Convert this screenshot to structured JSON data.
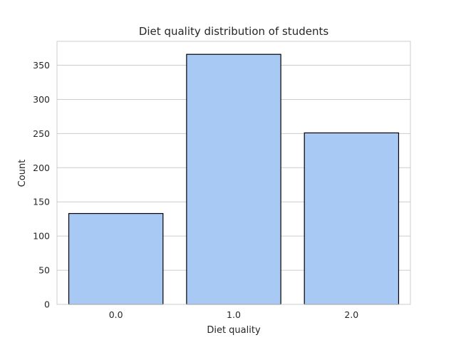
{
  "chart_data": {
    "type": "bar",
    "title": "Diet quality distribution of students",
    "xlabel": "Diet quality",
    "ylabel": "Count",
    "categories": [
      "0.0",
      "1.0",
      "2.0"
    ],
    "values": [
      133,
      366,
      251
    ],
    "ylim": [
      0,
      385
    ],
    "yticks": [
      0,
      50,
      100,
      150,
      200,
      250,
      300,
      350
    ],
    "grid": "y-major",
    "legend": "none",
    "colors": {
      "bar_fill": "#a8c9f4",
      "bar_edge": "#000000",
      "grid": "#cccccc",
      "frame": "#cccccc",
      "text": "#262626"
    }
  }
}
